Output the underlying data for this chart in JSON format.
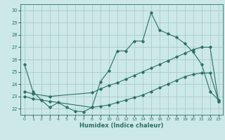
{
  "xlabel": "Humidex (Indice chaleur)",
  "bg_color": "#cce8e8",
  "grid_color": "#aacccc",
  "line_color": "#2a7068",
  "xlim": [
    -0.5,
    23.5
  ],
  "ylim": [
    21.5,
    30.5
  ],
  "xticks": [
    0,
    1,
    2,
    3,
    4,
    5,
    6,
    7,
    8,
    9,
    10,
    11,
    12,
    13,
    14,
    15,
    16,
    17,
    18,
    19,
    20,
    21,
    22,
    23
  ],
  "yticks": [
    22,
    23,
    24,
    25,
    26,
    27,
    28,
    29,
    30
  ],
  "line1_x": [
    0,
    1,
    2,
    3,
    4,
    5,
    6,
    7,
    8,
    9,
    10,
    11,
    12,
    13,
    14,
    15,
    16,
    17,
    18,
    19,
    20,
    21,
    22,
    23
  ],
  "line1_y": [
    25.6,
    23.4,
    22.7,
    22.1,
    22.5,
    22.1,
    21.8,
    21.75,
    22.1,
    24.2,
    25.1,
    26.7,
    26.7,
    27.5,
    27.5,
    29.8,
    28.4,
    28.1,
    27.8,
    27.3,
    26.6,
    25.6,
    23.4,
    22.7
  ],
  "line2_x": [
    0,
    1,
    3,
    8,
    9,
    10,
    11,
    12,
    13,
    14,
    15,
    16,
    17,
    18,
    19,
    20,
    21,
    22,
    23
  ],
  "line2_y": [
    23.4,
    23.2,
    23.0,
    23.3,
    23.6,
    23.9,
    24.1,
    24.4,
    24.7,
    25.0,
    25.3,
    25.6,
    25.9,
    26.2,
    26.5,
    26.8,
    27.0,
    27.0,
    22.6
  ],
  "line3_x": [
    0,
    1,
    2,
    3,
    8,
    9,
    10,
    11,
    12,
    13,
    14,
    15,
    16,
    17,
    18,
    19,
    20,
    21,
    22,
    23
  ],
  "line3_y": [
    23.0,
    22.8,
    22.7,
    22.6,
    22.1,
    22.2,
    22.3,
    22.5,
    22.7,
    22.9,
    23.1,
    23.4,
    23.7,
    24.0,
    24.3,
    24.6,
    24.8,
    24.9,
    24.9,
    22.6
  ]
}
